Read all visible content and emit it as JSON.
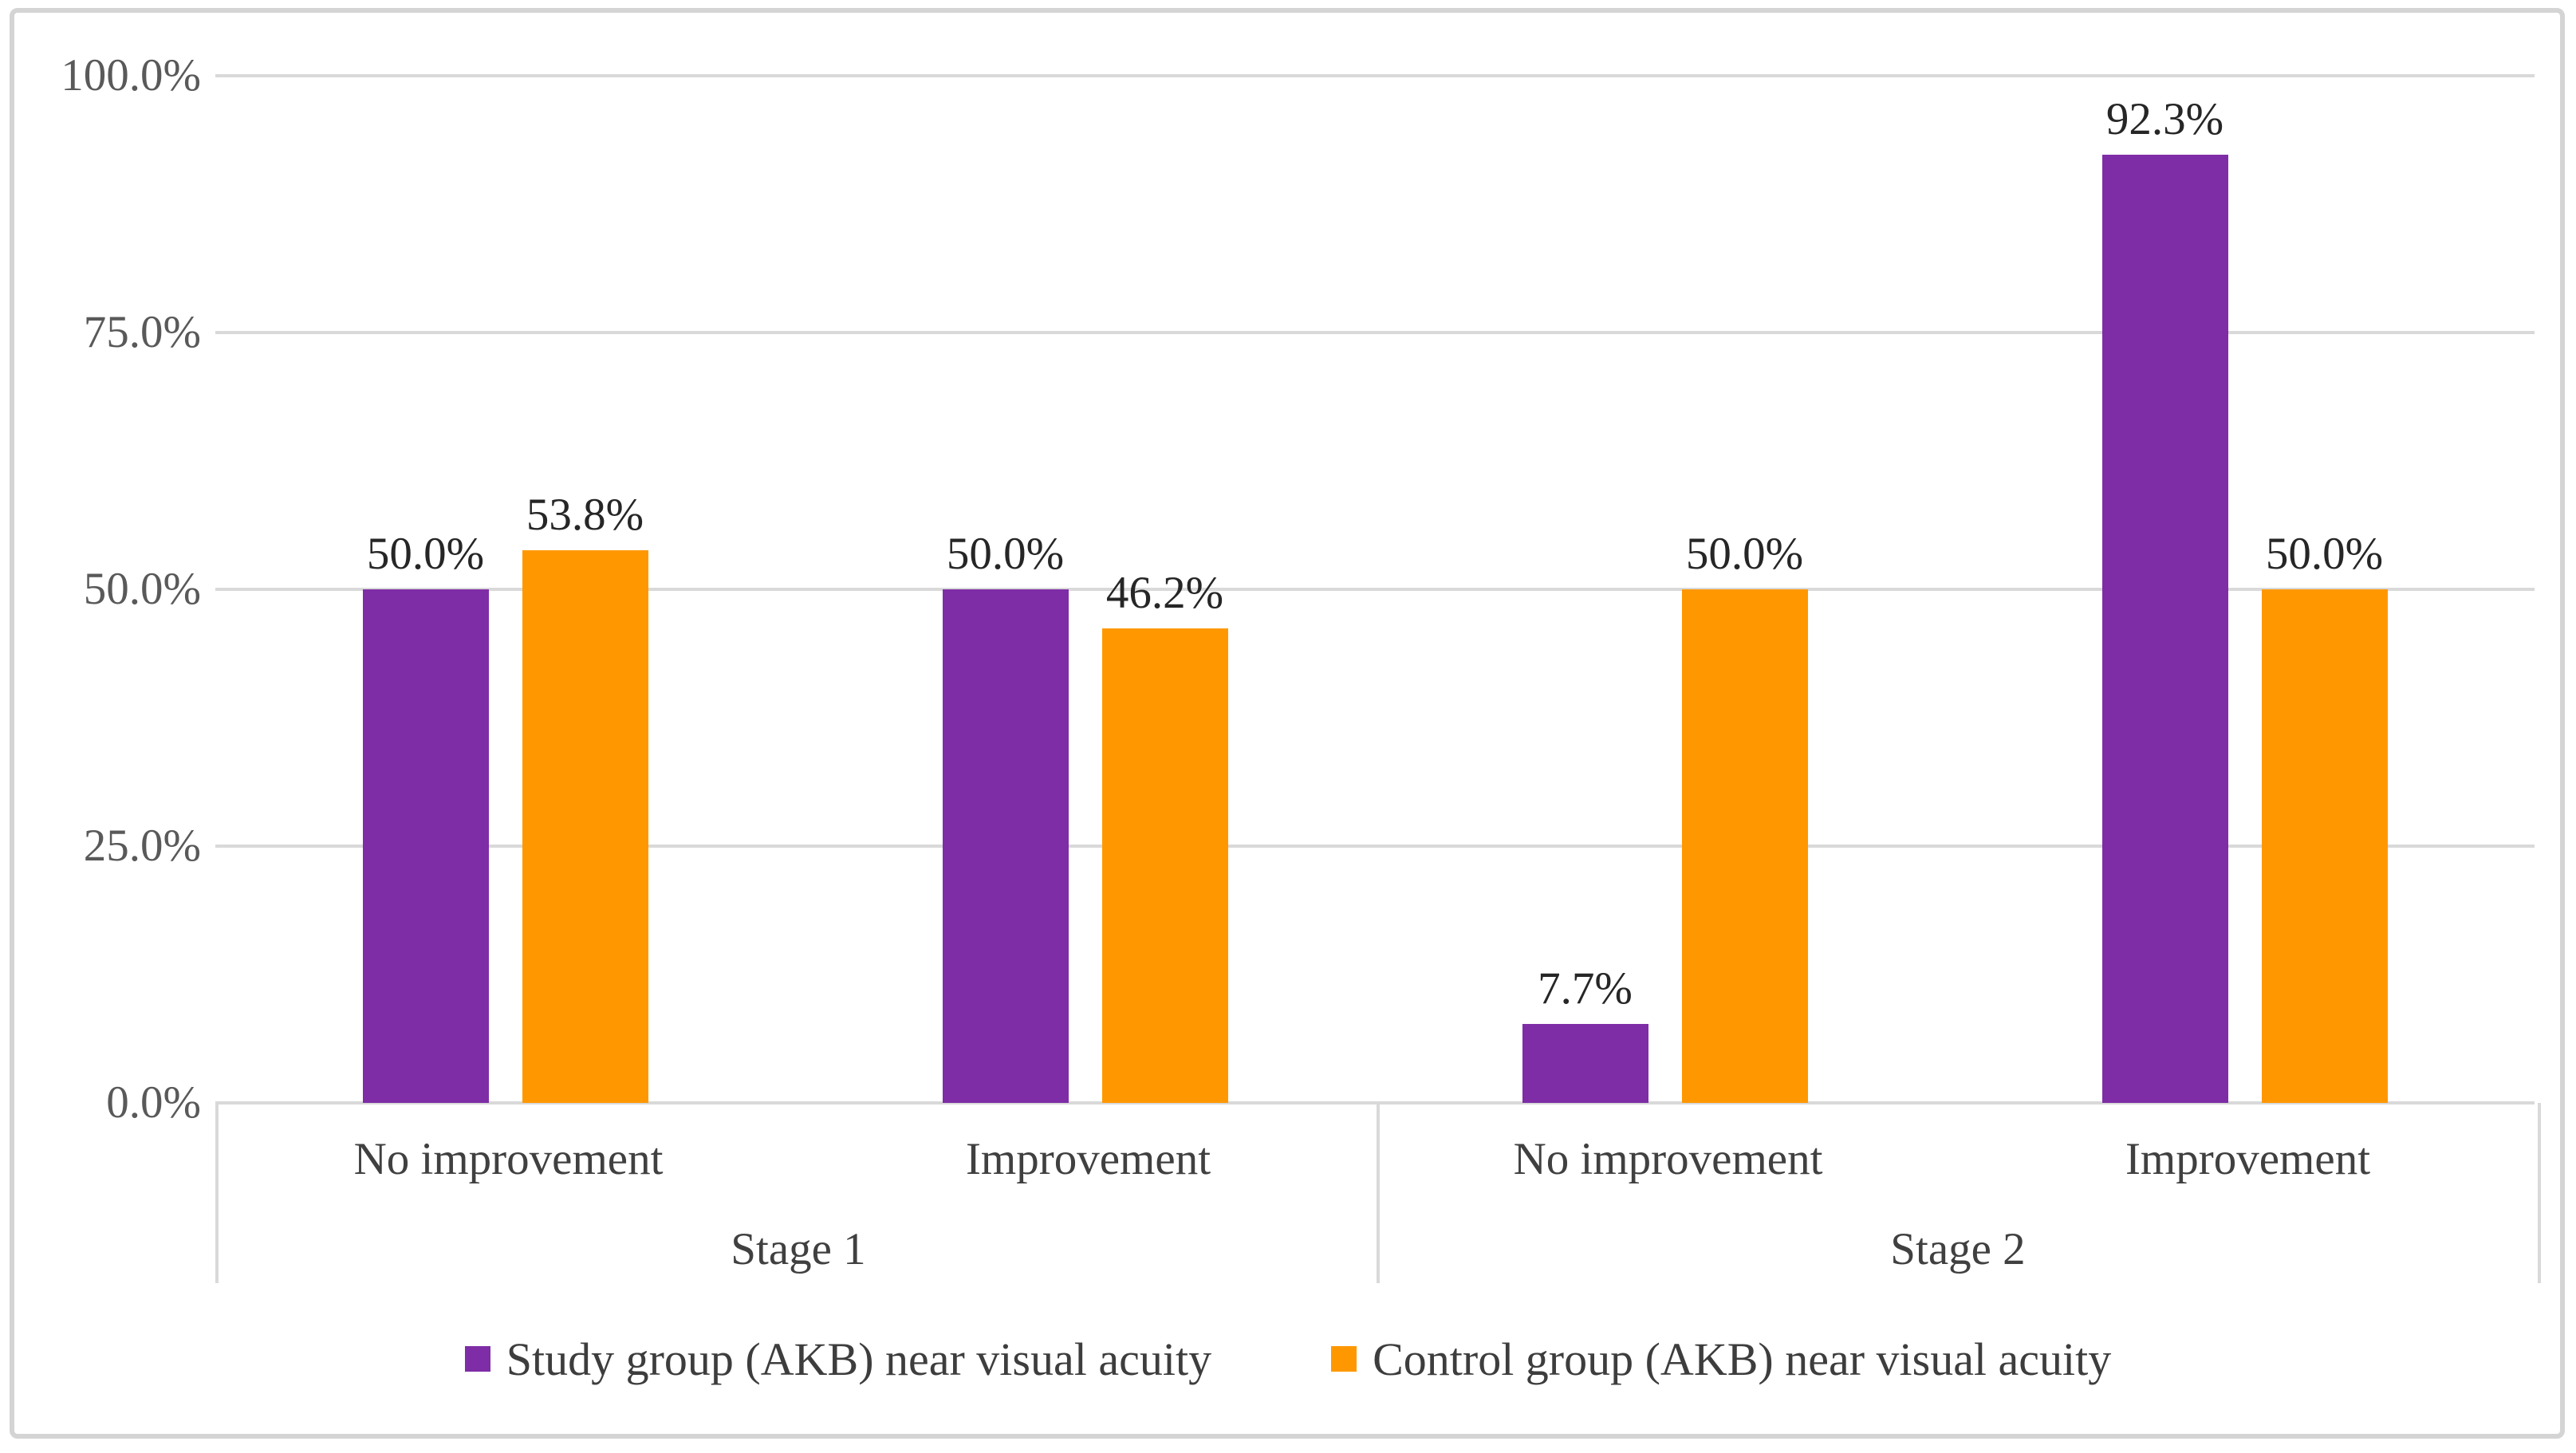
{
  "figure": {
    "background_color": "#ffffff",
    "frame_border_color": "#d4d4d4",
    "gridline_color": "#d9d9d9",
    "tick_label_color": "#595959",
    "data_label_color": "#262626",
    "axis_text_color": "#404040"
  },
  "chart_data": {
    "type": "bar",
    "title": "",
    "xlabel": "",
    "ylabel": "",
    "grid": true,
    "legend_position": "bottom",
    "y_axis": {
      "min": 0,
      "max": 100,
      "ticks": [
        {
          "value": 0,
          "label": "0.0%"
        },
        {
          "value": 25,
          "label": "25.0%"
        },
        {
          "value": 50,
          "label": "50.0%"
        },
        {
          "value": 75,
          "label": "75.0%"
        },
        {
          "value": 100,
          "label": "100.0%"
        }
      ]
    },
    "series": [
      {
        "name": "Study group (AKB) near visual acuity",
        "color": "#7e2da6"
      },
      {
        "name": "Control group (AKB) near visual acuity",
        "color": "#ff9800"
      }
    ],
    "stages": [
      {
        "label": "Stage 1",
        "categories": [
          {
            "label": "No improvement",
            "bars": [
              {
                "series": 0,
                "value": 50.0,
                "display": "50.0%"
              },
              {
                "series": 1,
                "value": 53.8,
                "display": "53.8%"
              }
            ]
          },
          {
            "label": "Improvement",
            "bars": [
              {
                "series": 0,
                "value": 50.0,
                "display": "50.0%"
              },
              {
                "series": 1,
                "value": 46.2,
                "display": "46.2%"
              }
            ]
          }
        ]
      },
      {
        "label": "Stage 2",
        "categories": [
          {
            "label": "No improvement",
            "bars": [
              {
                "series": 0,
                "value": 7.7,
                "display": "7.7%"
              },
              {
                "series": 1,
                "value": 50.0,
                "display": "50.0%"
              }
            ]
          },
          {
            "label": "Improvement",
            "bars": [
              {
                "series": 0,
                "value": 92.3,
                "display": "92.3%"
              },
              {
                "series": 1,
                "value": 50.0,
                "display": "50.0%"
              }
            ]
          }
        ]
      }
    ]
  }
}
